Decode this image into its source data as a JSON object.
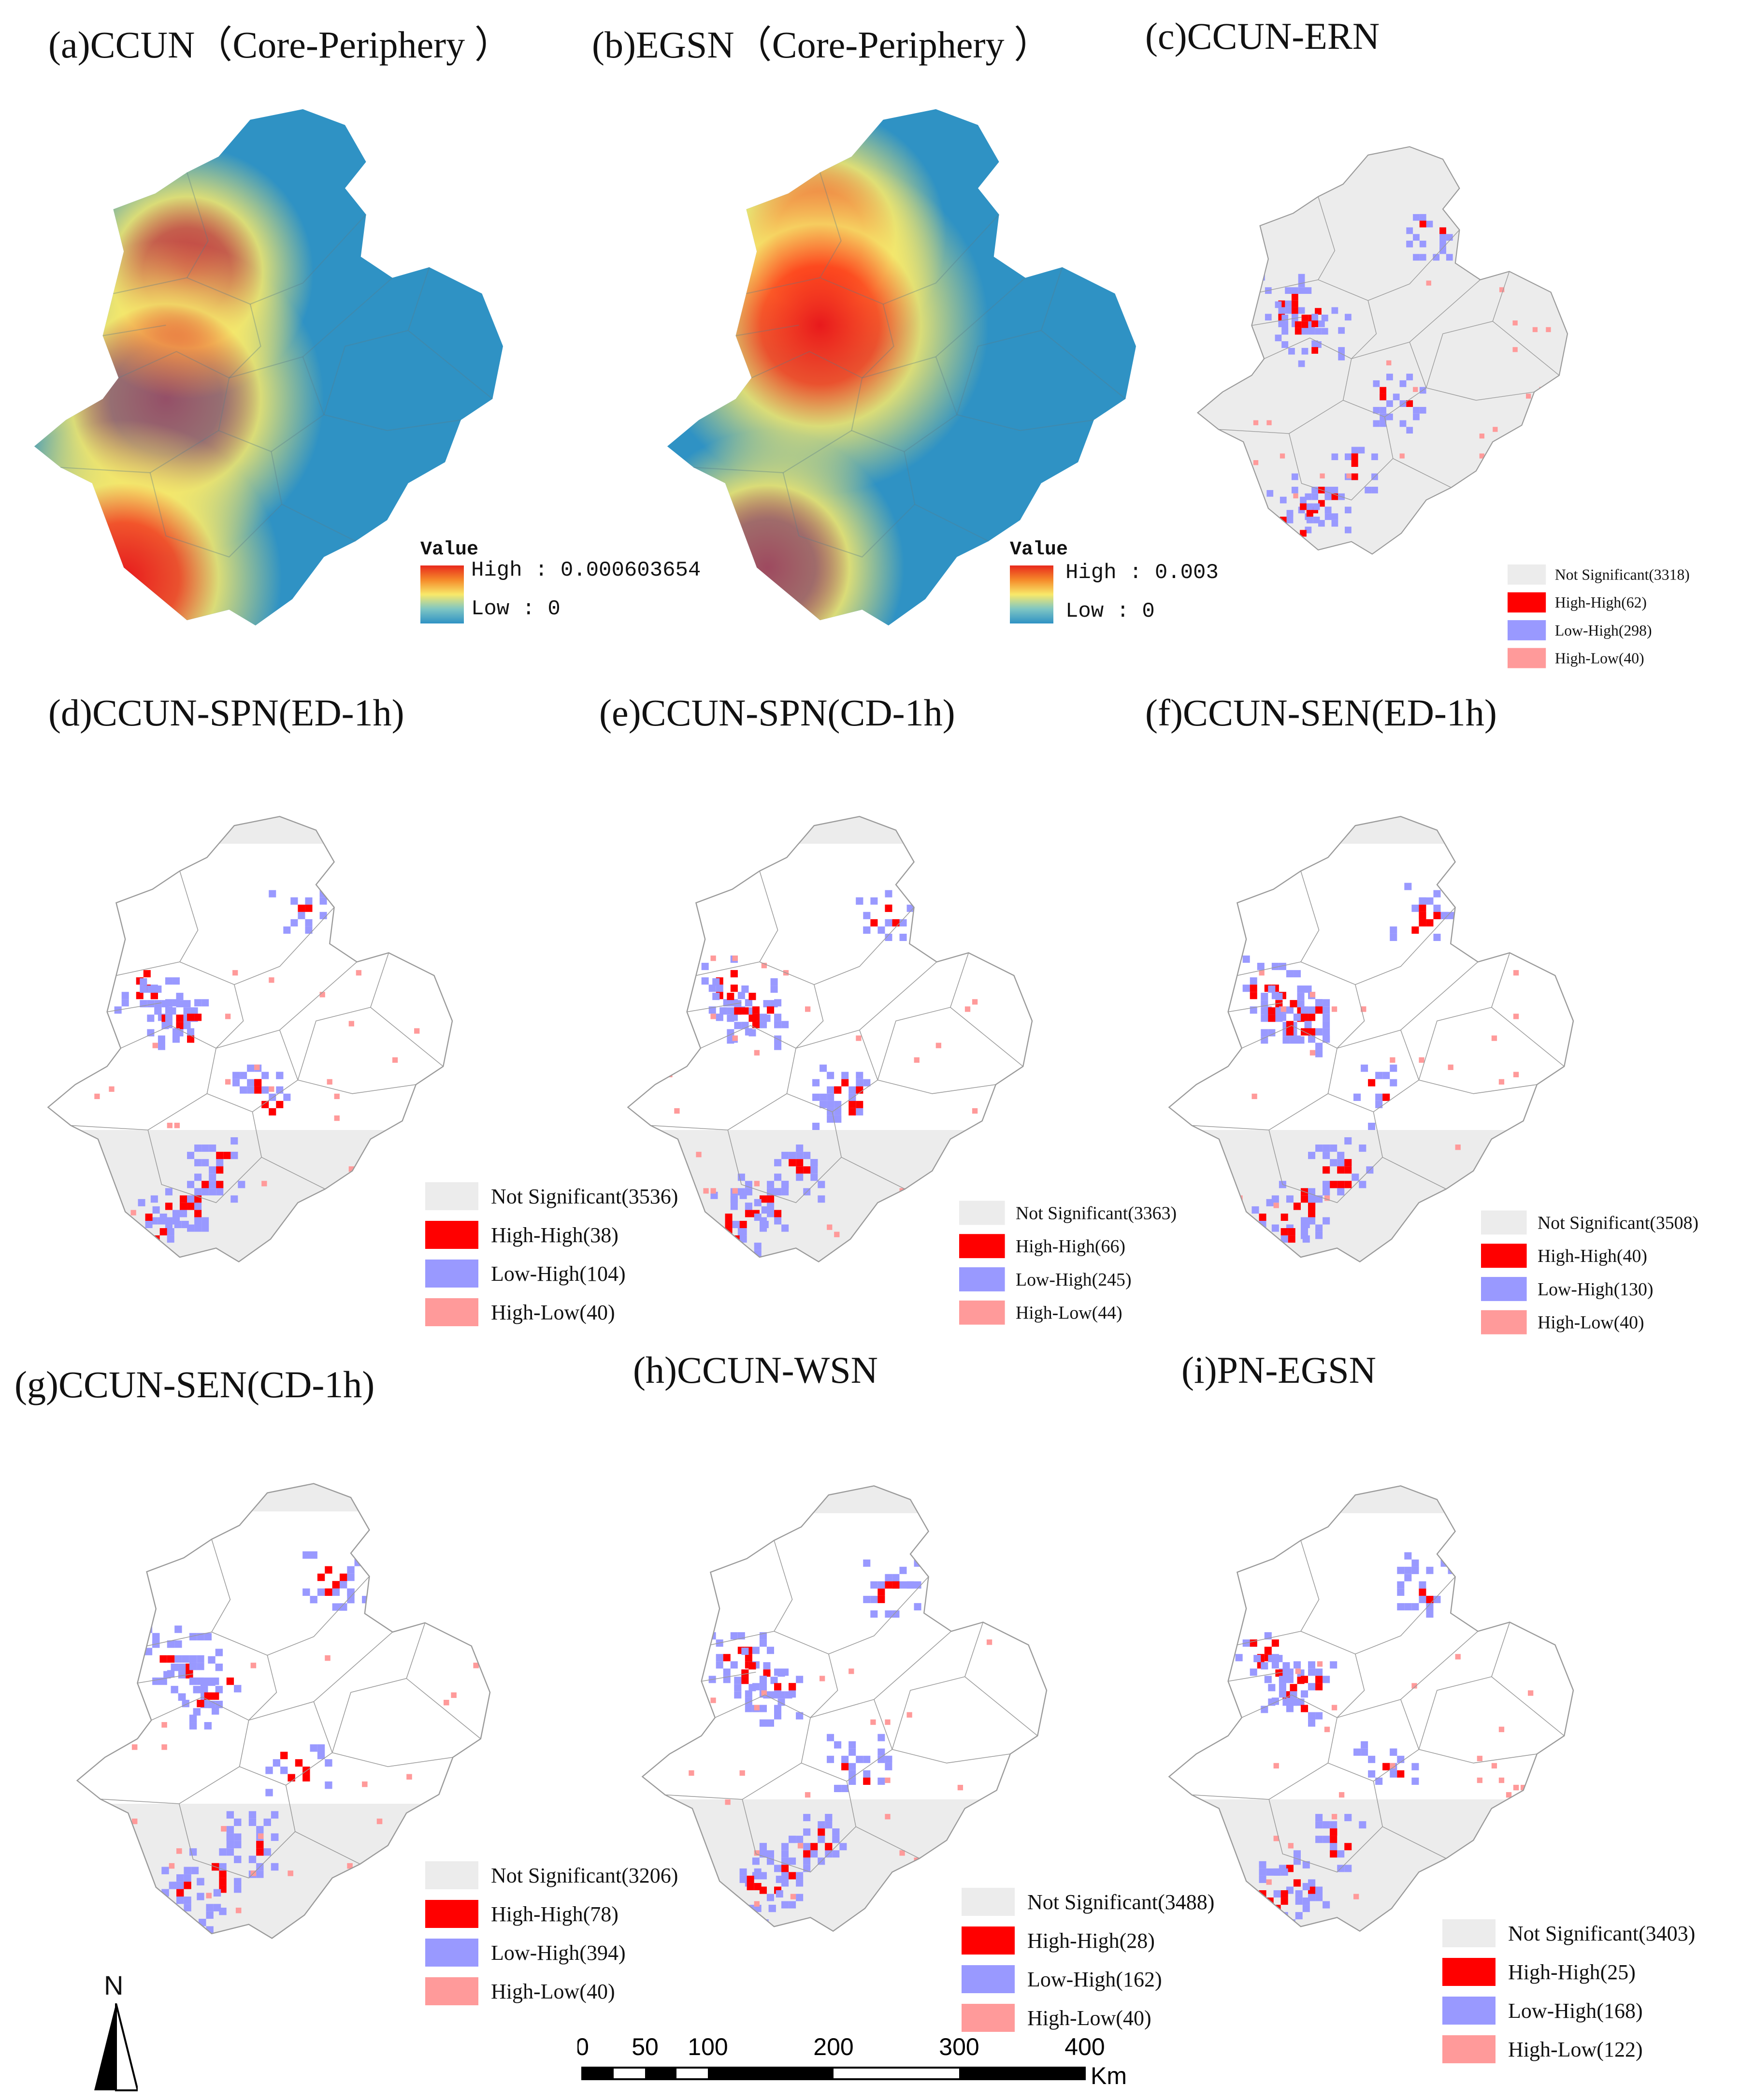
{
  "panels": [
    {
      "id": "a",
      "title": "(a)CCUN（Core-Periphery ）",
      "type": "heat",
      "legend": {
        "title": "Value",
        "high": "High : 0.000603654",
        "low": "Low : 0"
      }
    },
    {
      "id": "b",
      "title": "(b)EGSN（Core-Periphery ）",
      "type": "heat",
      "legend": {
        "title": "Value",
        "high": "High : 0.003",
        "low": "Low : 0"
      }
    },
    {
      "id": "c",
      "title": "(c)CCUN-ERN",
      "type": "lisa",
      "legend": [
        "Not Significant(3318)",
        "High-High(62)",
        "Low-High(298)",
        "High-Low(40)"
      ]
    },
    {
      "id": "d",
      "title": "(d)CCUN-SPN(ED-1h)",
      "type": "lisa",
      "legend": [
        "Not Significant(3536)",
        "High-High(38)",
        "Low-High(104)",
        "High-Low(40)"
      ]
    },
    {
      "id": "e",
      "title": "(e)CCUN-SPN(CD-1h)",
      "type": "lisa",
      "legend": [
        "Not Significant(3363)",
        "High-High(66)",
        "Low-High(245)",
        "High-Low(44)"
      ]
    },
    {
      "id": "f",
      "title": "(f)CCUN-SEN(ED-1h)",
      "type": "lisa",
      "legend": [
        "Not Significant(3508)",
        "High-High(40)",
        "Low-High(130)",
        "High-Low(40)"
      ]
    },
    {
      "id": "g",
      "title": "(g)CCUN-SEN(CD-1h)",
      "type": "lisa",
      "legend": [
        "Not Significant(3206)",
        "High-High(78)",
        "Low-High(394)",
        "High-Low(40)"
      ]
    },
    {
      "id": "h",
      "title": "(h)CCUN-WSN",
      "type": "lisa",
      "legend": [
        "Not Significant(3488)",
        "High-High(28)",
        "Low-High(162)",
        "High-Low(40)"
      ]
    },
    {
      "id": "i",
      "title": "(i)PN-EGSN",
      "type": "lisa",
      "legend": [
        "Not Significant(3403)",
        "High-High(25)",
        "Low-High(168)",
        "High-Low(122)"
      ]
    }
  ],
  "colors": {
    "not_significant": "#ececec",
    "high_high": "#ff0000",
    "low_high": "#9999ff",
    "high_low": "#ff9a9a",
    "heat_high": "#e8291c",
    "heat_low": "#2f92c4",
    "boundary": "#9a9a9a"
  },
  "north_arrow": {
    "label": "N",
    "icon": "north-arrow-icon"
  },
  "scale_bar": {
    "ticks": [
      "0",
      "50",
      "100",
      "200",
      "300",
      "400"
    ],
    "unit": "Km"
  }
}
